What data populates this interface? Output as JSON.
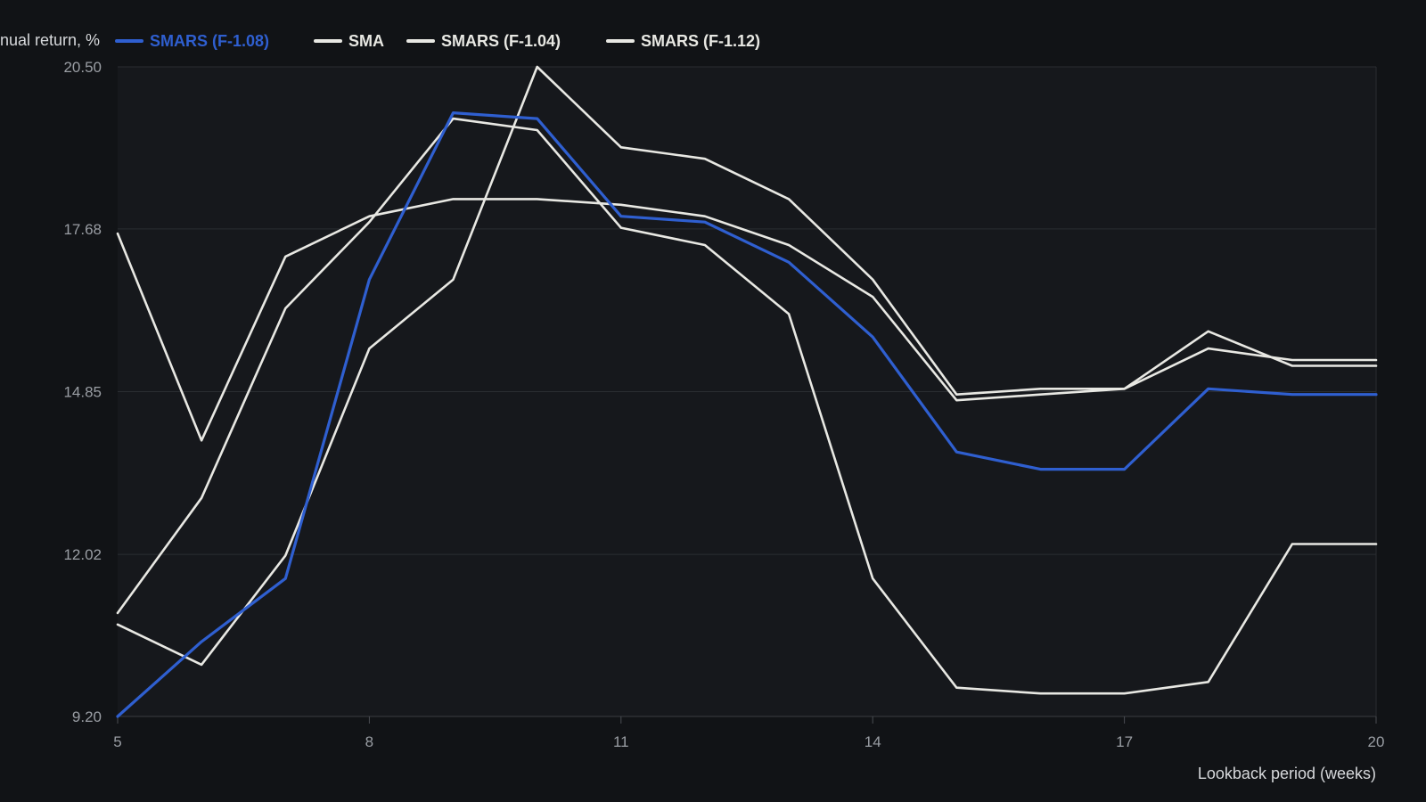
{
  "chart_data": {
    "type": "line",
    "ylabel": "Annual return, %",
    "xlabel": "Lookback period (weeks)",
    "x": [
      5,
      6,
      7,
      8,
      9,
      10,
      11,
      12,
      13,
      14,
      15,
      16,
      17,
      18,
      19,
      20
    ],
    "xticks": [
      5,
      8,
      11,
      14,
      17,
      20
    ],
    "yticks": [
      "20.50",
      "17.68",
      "14.85",
      "12.02",
      "9.20"
    ],
    "ylim": [
      9.2,
      20.5
    ],
    "grid": true,
    "legend_position": "top",
    "series": [
      {
        "name": "SMARS (F-1.08)",
        "color": "#2f5fd0",
        "values": [
          9.2,
          10.5,
          11.6,
          16.8,
          19.7,
          19.6,
          17.9,
          17.8,
          17.1,
          15.8,
          13.8,
          13.5,
          13.5,
          14.9,
          14.8,
          14.8
        ]
      },
      {
        "name": "SMA",
        "color": "#e8e8e3",
        "values": [
          17.6,
          14.0,
          17.2,
          17.9,
          18.2,
          18.2,
          18.1,
          17.9,
          17.4,
          16.5,
          14.7,
          14.8,
          14.9,
          15.9,
          15.3,
          15.3
        ]
      },
      {
        "name": "SMARS (F-1.04)",
        "color": "#e8e8e3",
        "values": [
          11.0,
          13.0,
          16.3,
          17.8,
          19.6,
          19.4,
          17.7,
          17.4,
          16.2,
          11.6,
          9.7,
          9.6,
          9.6,
          9.8,
          12.2,
          12.2
        ]
      },
      {
        "name": "SMARS (F-1.12)",
        "color": "#e8e8e3",
        "values": [
          10.8,
          10.1,
          12.0,
          15.6,
          16.8,
          20.5,
          19.1,
          18.9,
          18.2,
          16.8,
          14.8,
          14.9,
          14.9,
          15.6,
          15.4,
          15.4
        ]
      }
    ]
  },
  "colors": {
    "background": "#111316",
    "plot_background": "#16181c",
    "grid": "#2a2d31",
    "axis_text": "#9a9ea4"
  }
}
